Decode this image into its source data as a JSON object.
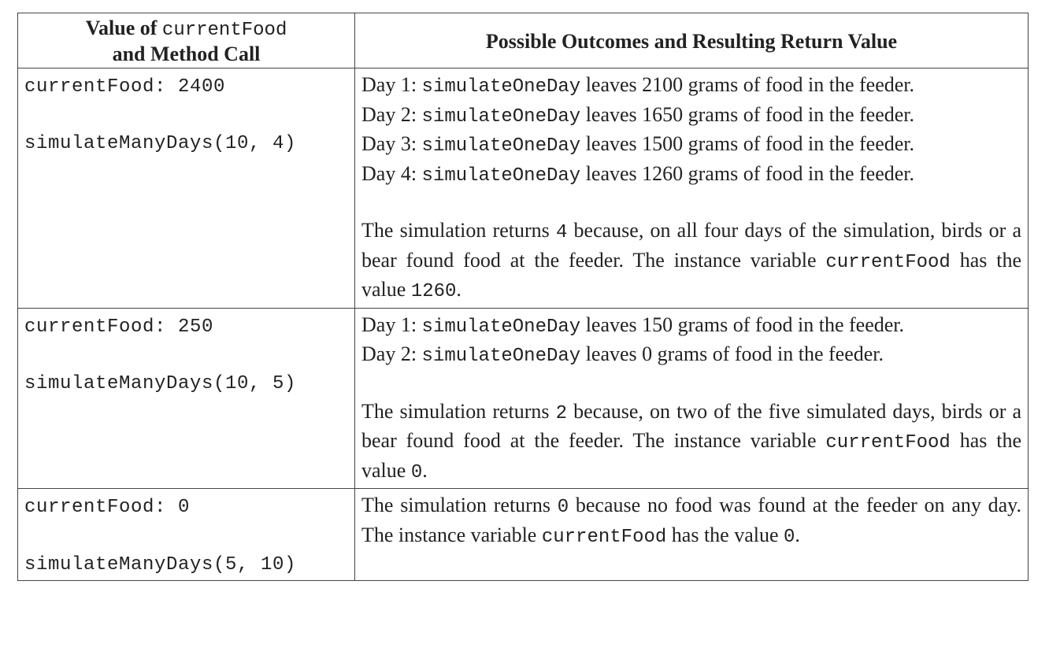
{
  "table": {
    "header": [
      [
        [
          [
            {
              "text": "Value of "
            },
            {
              "code": "currentFood"
            }
          ],
          [
            {
              "text": "and Method Call"
            }
          ]
        ]
      ],
      [
        [
          [
            {
              "text": "Possible Outcomes and Resulting Return Value"
            }
          ]
        ]
      ]
    ],
    "rows": [
      [
        [
          [
            [
              {
                "code": "currentFood: 2400"
              }
            ]
          ],
          [
            [
              {
                "code": "simulateManyDays(10, 4)"
              }
            ]
          ]
        ],
        [
          [
            [
              {
                "text": "Day 1: "
              },
              {
                "code": "simulateOneDay"
              },
              {
                "text": " leaves 2100 grams of food in the feeder."
              }
            ],
            [
              {
                "text": "Day 2: "
              },
              {
                "code": "simulateOneDay"
              },
              {
                "text": " leaves 1650 grams of food in the feeder."
              }
            ],
            [
              {
                "text": "Day 3: "
              },
              {
                "code": "simulateOneDay"
              },
              {
                "text": " leaves 1500 grams of food in the feeder."
              }
            ],
            [
              {
                "text": "Day 4: "
              },
              {
                "code": "simulateOneDay"
              },
              {
                "text": " leaves 1260 grams of food in the feeder."
              }
            ]
          ],
          [
            [
              {
                "text": "The simulation returns "
              },
              {
                "code": "4"
              },
              {
                "text": " because, on all four days of the simulation, birds or a bear found food at the feeder. The instance variable "
              },
              {
                "code": "currentFood"
              },
              {
                "text": " has the value "
              },
              {
                "code": "1260"
              },
              {
                "text": "."
              }
            ]
          ]
        ]
      ],
      [
        [
          [
            [
              {
                "code": "currentFood: 250"
              }
            ]
          ],
          [
            [
              {
                "code": "simulateManyDays(10, 5)"
              }
            ]
          ]
        ],
        [
          [
            [
              {
                "text": "Day 1: "
              },
              {
                "code": "simulateOneDay"
              },
              {
                "text": " leaves 150 grams of food in the feeder."
              }
            ],
            [
              {
                "text": "Day 2: "
              },
              {
                "code": "simulateOneDay"
              },
              {
                "text": " leaves 0 grams of food in the feeder."
              }
            ]
          ],
          [
            [
              {
                "text": "The simulation returns "
              },
              {
                "code": "2"
              },
              {
                "text": " because, on two of the five simulated days, birds or a bear found food at the feeder. The instance variable "
              },
              {
                "code": "currentFood"
              },
              {
                "text": " has the value "
              },
              {
                "code": "0"
              },
              {
                "text": "."
              }
            ]
          ]
        ]
      ],
      [
        [
          [
            [
              {
                "code": "currentFood: 0"
              }
            ]
          ],
          [
            [
              {
                "code": "simulateManyDays(5, 10)"
              }
            ]
          ]
        ],
        [
          [
            [
              {
                "text": "The simulation returns "
              },
              {
                "code": "0"
              },
              {
                "text": " because no food was found at the feeder on any day. The instance variable "
              },
              {
                "code": "currentFood"
              },
              {
                "text": " has the value "
              },
              {
                "code": "0"
              },
              {
                "text": "."
              }
            ]
          ]
        ]
      ]
    ]
  }
}
